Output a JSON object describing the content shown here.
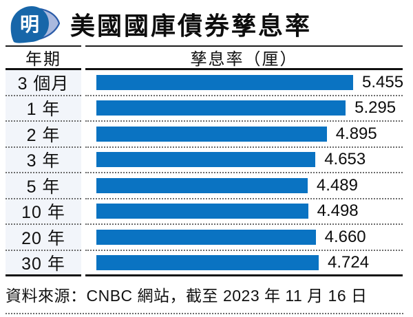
{
  "title": "美國國庫債券孳息率",
  "logo": {
    "char": "明"
  },
  "table_header": {
    "term": "年期",
    "yield": "孳息率（厘）"
  },
  "chart_data": {
    "type": "bar",
    "orientation": "horizontal",
    "title": "美國國庫債券孳息率",
    "ylabel": "年期",
    "xlabel": "孳息率（厘）",
    "categories": [
      "3 個月",
      "1 年",
      "2 年",
      "3 年",
      "5 年",
      "10 年",
      "20 年",
      "30 年"
    ],
    "values": [
      5.455,
      5.295,
      4.895,
      4.653,
      4.489,
      4.498,
      4.66,
      4.724
    ],
    "value_labels": [
      "5.455",
      "5.295",
      "4.895",
      "4.653",
      "4.489",
      "4.498",
      "4.660",
      "4.724"
    ],
    "xlim": [
      0,
      5.455
    ],
    "bar_color": "#0a73c2",
    "legend": "none",
    "grid": false
  },
  "footer": {
    "source": "資料來源：CNBC 網站，截至 2023 年 11 月 16 日"
  },
  "colors": {
    "bar": "#0a73c2",
    "logo_balloon": "#1766a9",
    "logo_swoosh_fill": "#aab9de",
    "logo_swoosh_edge": "#2a5ba8",
    "rule": "#101010",
    "label_cell_bg": "#f2f5fa"
  }
}
